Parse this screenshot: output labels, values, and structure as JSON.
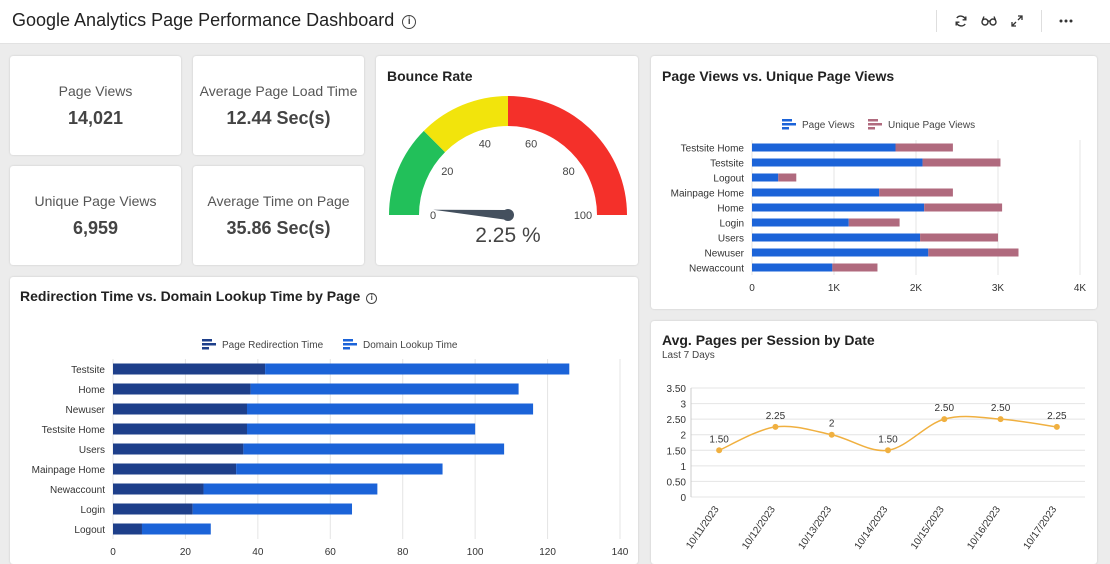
{
  "header": {
    "title": "Google Analytics Page Performance Dashboard",
    "icons": [
      "info-icon",
      "refresh-icon",
      "glasses-icon",
      "expand-icon",
      "more-icon"
    ]
  },
  "kpis": {
    "page_views": {
      "label": "Page Views",
      "value": "14,021"
    },
    "avg_load_time": {
      "label": "Average Page Load Time",
      "value": "12.44 Sec(s)"
    },
    "unique_page_views": {
      "label": "Unique Page Views",
      "value": "6,959"
    },
    "avg_time_on_page": {
      "label": "Average Time on Page",
      "value": "35.86 Sec(s)"
    }
  },
  "bounce_rate": {
    "title": "Bounce Rate",
    "value_label": "2.25 %",
    "value": 2.25,
    "min": 0,
    "max": 100,
    "ticks": [
      0,
      20,
      40,
      60,
      80,
      100
    ],
    "bands": [
      {
        "from": 0,
        "to": 25,
        "color": "#22c05a"
      },
      {
        "from": 25,
        "to": 50,
        "color": "#f2e40c"
      },
      {
        "from": 50,
        "to": 100,
        "color": "#f4302a"
      }
    ]
  },
  "page_vs_unique": {
    "title": "Page Views vs. Unique Page Views",
    "chart_data": {
      "type": "bar",
      "orientation": "horizontal",
      "stacked": true,
      "categories": [
        "Testsite Home",
        "Testsite",
        "Logout",
        "Mainpage Home",
        "Home",
        "Login",
        "Users",
        "Newuser",
        "Newaccount"
      ],
      "series": [
        {
          "name": "Page Views",
          "color": "#1b63d8",
          "values": [
            1750,
            2080,
            320,
            1550,
            2100,
            1180,
            2050,
            2150,
            980
          ]
        },
        {
          "name": "Unique Page Views",
          "color": "#b06a7e",
          "values": [
            700,
            950,
            220,
            900,
            950,
            620,
            950,
            1100,
            550
          ]
        }
      ],
      "xlim": [
        0,
        4000
      ],
      "xticks": [
        0,
        1000,
        2000,
        3000,
        4000
      ],
      "xtick_labels": [
        "0",
        "1K",
        "2K",
        "3K",
        "4K"
      ],
      "legend": "top"
    }
  },
  "redirection": {
    "title": "Redirection Time vs. Domain Lookup Time by Page",
    "chart_data": {
      "type": "bar",
      "orientation": "horizontal",
      "stacked": true,
      "categories": [
        "Testsite",
        "Home",
        "Newuser",
        "Testsite Home",
        "Users",
        "Mainpage Home",
        "Newaccount",
        "Login",
        "Logout"
      ],
      "series": [
        {
          "name": "Page Redirection Time",
          "color": "#1e3f8a",
          "values": [
            42,
            38,
            37,
            37,
            36,
            34,
            25,
            22,
            8
          ]
        },
        {
          "name": "Domain Lookup Time",
          "color": "#1b63d8",
          "values": [
            84,
            74,
            79,
            63,
            72,
            57,
            48,
            44,
            19
          ]
        }
      ],
      "xlim": [
        0,
        140
      ],
      "xticks": [
        0,
        20,
        40,
        60,
        80,
        100,
        120,
        140
      ],
      "legend": "top"
    }
  },
  "avg_pages": {
    "title": "Avg. Pages per Session by Date",
    "subtitle": "Last 7 Days",
    "chart_data": {
      "type": "line",
      "smooth": true,
      "color": "#f0b040",
      "x": [
        "10/11/2023",
        "10/12/2023",
        "10/13/2023",
        "10/14/2023",
        "10/15/2023",
        "10/16/2023",
        "10/17/2023"
      ],
      "y": [
        1.5,
        2.25,
        2,
        1.5,
        2.5,
        2.5,
        2.25
      ],
      "labels": [
        "1.50",
        "2.25",
        "2",
        "1.50",
        "2.50",
        "2.50",
        "2.25"
      ],
      "ylim": [
        0,
        3.5
      ],
      "yticks": [
        0,
        0.5,
        1,
        1.5,
        2,
        2.5,
        3,
        3.5
      ],
      "ytick_labels": [
        "0",
        "0.50",
        "1",
        "1.50",
        "2",
        "2.50",
        "3",
        "3.50"
      ]
    }
  }
}
